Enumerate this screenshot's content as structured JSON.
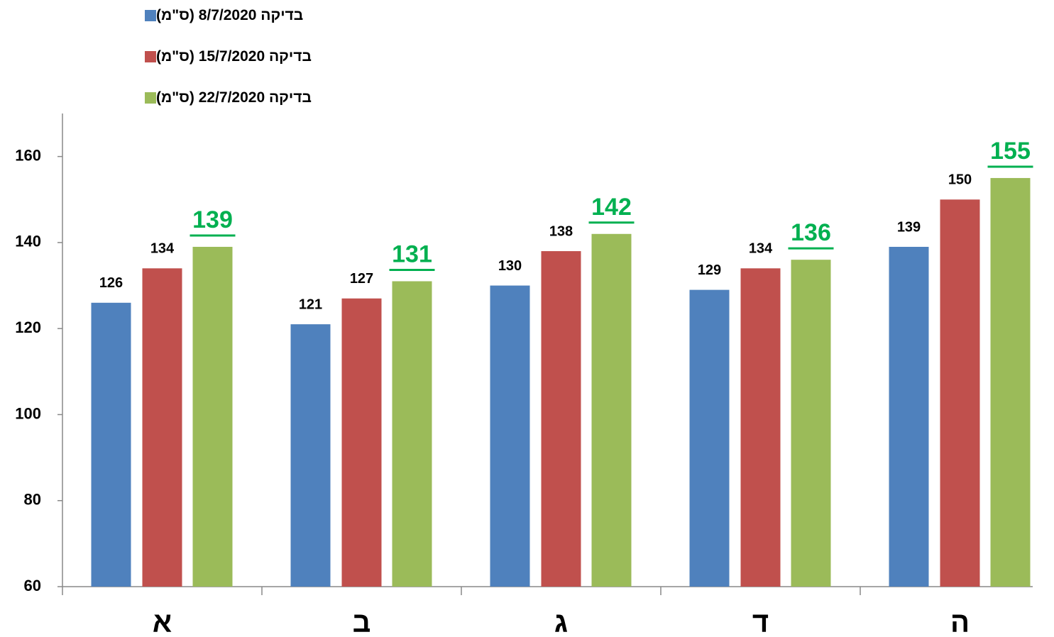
{
  "chart_data": {
    "type": "bar",
    "categories": [
      "א",
      "ב",
      "ג",
      "ד",
      "ה"
    ],
    "series": [
      {
        "name": "בדיקה 8/7/2020  (ס\"מ)",
        "color": "#4f81bd",
        "values": [
          126,
          121,
          130,
          129,
          139
        ]
      },
      {
        "name": "בדיקה 15/7/2020  (ס\"מ)",
        "color": "#c0504d",
        "values": [
          134,
          127,
          138,
          134,
          150
        ]
      },
      {
        "name": "בדיקה 22/7/2020  (ס\"מ)",
        "color": "#9bbb59",
        "values": [
          139,
          131,
          142,
          136,
          155
        ],
        "highlight_labels": true
      }
    ],
    "ylim": [
      60,
      170
    ],
    "yticks": [
      60,
      80,
      100,
      120,
      140,
      160
    ],
    "grid": false,
    "legend": "top-left"
  }
}
